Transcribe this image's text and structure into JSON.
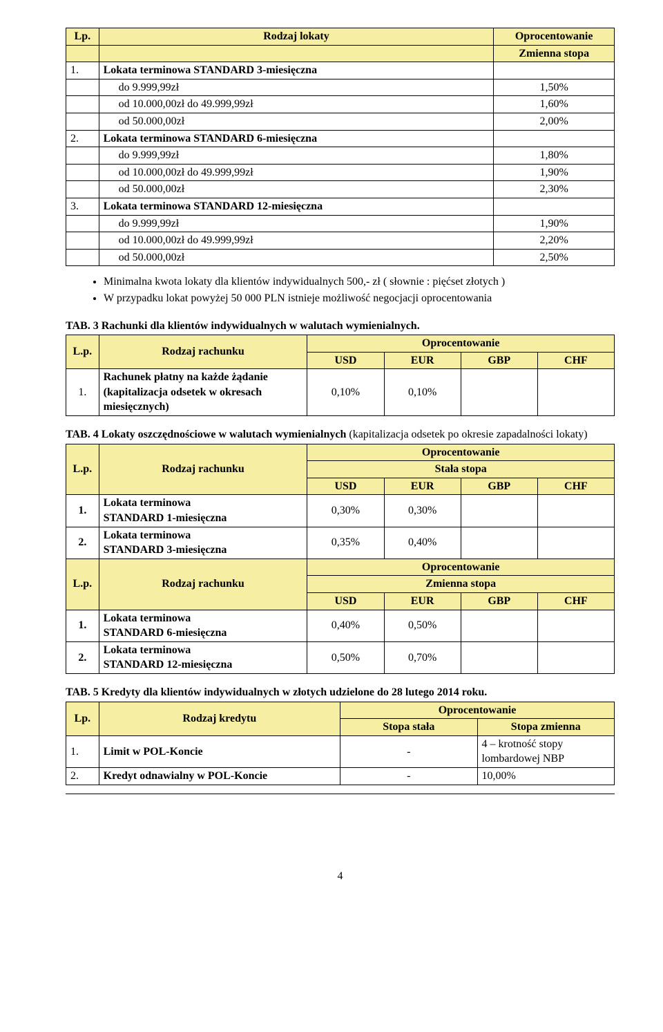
{
  "colors": {
    "headerBg": "#f5eea3",
    "text": "#000000",
    "border": "#000000",
    "pageBg": "#ffffff"
  },
  "table1": {
    "head": {
      "lp": "Lp.",
      "rodzaj": "Rodzaj lokaty",
      "opr": "Oprocentowanie",
      "sub": "Zmienna stopa"
    },
    "groups": [
      {
        "lp": "1.",
        "name": "Lokata terminowa STANDARD 3-miesięczna",
        "rows": [
          {
            "label": "do 9.999,99zł",
            "rate": "1,50%"
          },
          {
            "label": "od 10.000,00zł do 49.999,99zł",
            "rate": "1,60%"
          },
          {
            "label": "od 50.000,00zł",
            "rate": "2,00%"
          }
        ]
      },
      {
        "lp": "2.",
        "name": "Lokata terminowa STANDARD 6-miesięczna",
        "rows": [
          {
            "label": "do 9.999,99zł",
            "rate": "1,80%"
          },
          {
            "label": "od 10.000,00zł do 49.999,99zł",
            "rate": "1,90%"
          },
          {
            "label": "od 50.000,00zł",
            "rate": "2,30%"
          }
        ]
      },
      {
        "lp": "3.",
        "name": "Lokata terminowa STANDARD 12-miesięczna",
        "rows": [
          {
            "label": "do 9.999,99zł",
            "rate": "1,90%"
          },
          {
            "label": "od 10.000,00zł do 49.999,99zł",
            "rate": "2,20%"
          },
          {
            "label": "od 50.000,00zł",
            "rate": "2,50%"
          }
        ]
      }
    ]
  },
  "bullets": [
    "Minimalna kwota lokaty dla klientów indywidualnych 500,- zł ( słownie : pięćset złotych )",
    "W przypadku lokat powyżej 50 000 PLN istnieje możliwość negocjacji oprocentowania"
  ],
  "tab3": {
    "title": "TAB. 3 Rachunki dla klientów indywidualnych w walutach wymienialnych.",
    "head": {
      "lp": "L.p.",
      "rodzaj": "Rodzaj rachunku",
      "opr": "Oprocentowanie",
      "c": [
        "USD",
        "EUR",
        "GBP",
        "CHF"
      ]
    },
    "rows": [
      {
        "lp": "1.",
        "name": "Rachunek płatny na każde żądanie (kapitalizacja odsetek w okresach miesięcznych)",
        "v": [
          "0,10%",
          "0,10%",
          "",
          ""
        ]
      }
    ]
  },
  "tab4": {
    "title_bold": "TAB. 4 Lokaty oszczędnościowe w walutach wymienialnych ",
    "title_rest": "(kapitalizacja odsetek po okresie zapadalności lokaty)",
    "header1": {
      "lp": "L.p.",
      "rodzaj": "Rodzaj rachunku",
      "opr": "Oprocentowanie",
      "sub": "Stała stopa",
      "c": [
        "USD",
        "EUR",
        "GBP",
        "CHF"
      ]
    },
    "section1": [
      {
        "lp": "1.",
        "name1": "Lokata terminowa",
        "name2": "STANDARD 1-miesięczna",
        "v": [
          "0,30%",
          "0,30%",
          "",
          ""
        ]
      },
      {
        "lp": "2.",
        "name1": "Lokata terminowa",
        "name2": "STANDARD 3-miesięczna",
        "v": [
          "0,35%",
          "0,40%",
          "",
          ""
        ]
      }
    ],
    "header2": {
      "lp": "L.p.",
      "rodzaj": "Rodzaj rachunku",
      "opr": "Oprocentowanie",
      "sub": "Zmienna stopa",
      "c": [
        "USD",
        "EUR",
        "GBP",
        "CHF"
      ]
    },
    "section2": [
      {
        "lp": "1.",
        "name1": "Lokata terminowa",
        "name2": "STANDARD 6-miesięczna",
        "v": [
          "0,40%",
          "0,50%",
          "",
          ""
        ]
      },
      {
        "lp": "2.",
        "name1": "Lokata terminowa",
        "name2": "STANDARD 12-miesięczna",
        "v": [
          "0,50%",
          "0,70%",
          "",
          ""
        ]
      }
    ]
  },
  "tab5": {
    "title": "TAB. 5 Kredyty dla klientów indywidualnych w złotych udzielone do 28 lutego 2014 roku.",
    "head": {
      "lp": "Lp.",
      "rodzaj": "Rodzaj kredytu",
      "opr": "Oprocentowanie",
      "c": [
        "Stopa stała",
        "Stopa zmienna"
      ]
    },
    "rows": [
      {
        "lp": "1.",
        "name": "Limit w POL-Koncie",
        "stala": "-",
        "zmienna": "4 – krotność stopy lombardowej NBP"
      },
      {
        "lp": "2.",
        "name": "Kredyt odnawialny w POL-Koncie",
        "stala": "-",
        "zmienna": "10,00%"
      }
    ]
  },
  "pageNumber": "4"
}
